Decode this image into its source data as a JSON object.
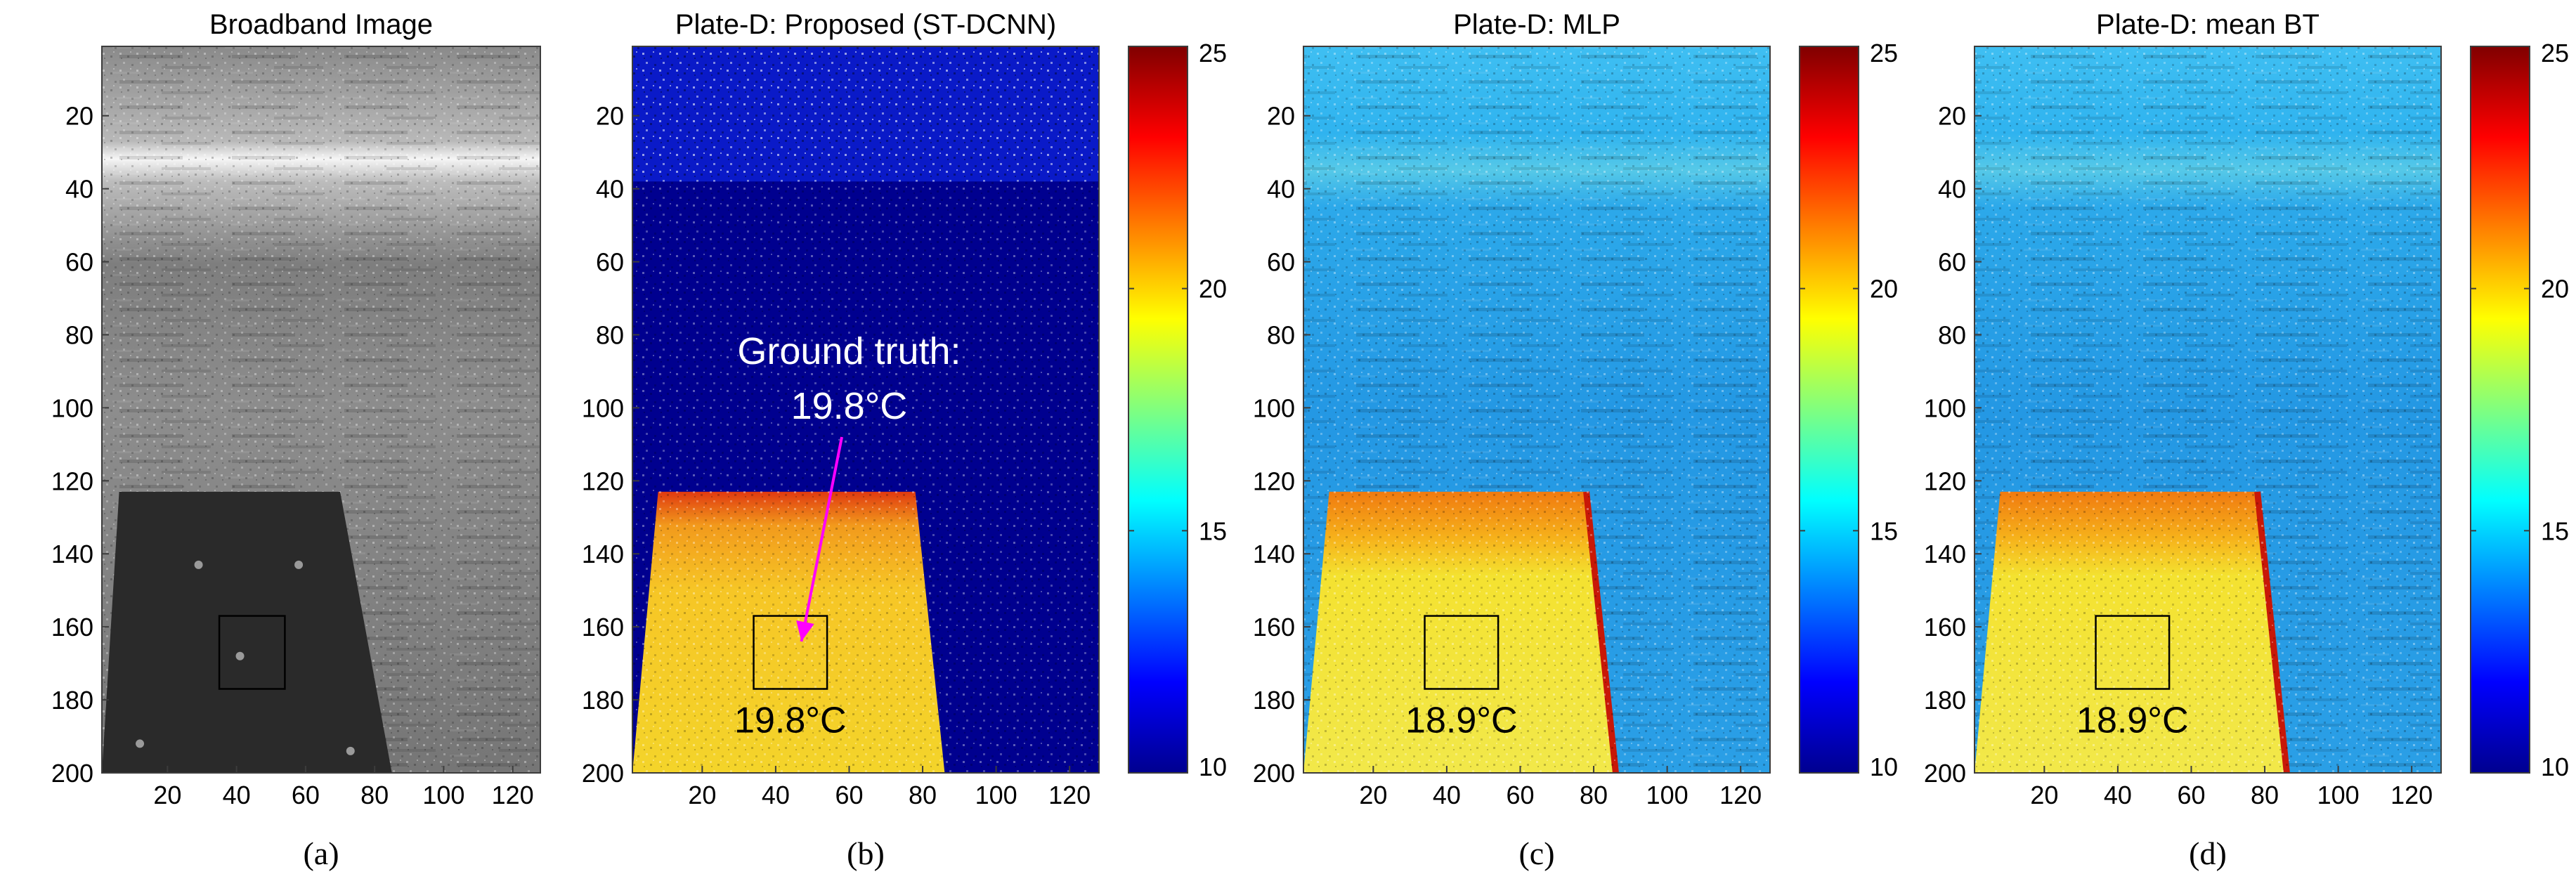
{
  "chart_data": [
    {
      "id": "a",
      "type": "heatmap",
      "title": "Broadband Image",
      "panel_label": "(a)",
      "colormap": "gray",
      "x_ticks": [
        20,
        40,
        60,
        80,
        100,
        120
      ],
      "y_ticks": [
        20,
        40,
        60,
        80,
        100,
        120,
        140,
        160,
        180,
        200
      ],
      "xlim": [
        1,
        128
      ],
      "ylim": [
        1,
        200
      ],
      "plate_polygon": [
        [
          6,
          123
        ],
        [
          70,
          123
        ],
        [
          85,
          200
        ],
        [
          1,
          200
        ]
      ],
      "roi_box": {
        "x1": 35,
        "y1": 157,
        "x2": 54,
        "y2": 177
      }
    },
    {
      "id": "b",
      "type": "heatmap",
      "title": "Plate-D: Proposed (ST-DCNN)",
      "panel_label": "(b)",
      "colormap": "jet",
      "x_ticks": [
        20,
        40,
        60,
        80,
        100,
        120
      ],
      "y_ticks": [
        20,
        40,
        60,
        80,
        100,
        120,
        140,
        160,
        180,
        200
      ],
      "xlim": [
        1,
        128
      ],
      "ylim": [
        1,
        200
      ],
      "clim": [
        10,
        25
      ],
      "colorbar_ticks": [
        10,
        15,
        20,
        25
      ],
      "plate_polygon": [
        [
          8,
          123
        ],
        [
          78,
          123
        ],
        [
          86,
          200
        ],
        [
          1,
          200
        ]
      ],
      "roi_box": {
        "x1": 34,
        "y1": 157,
        "x2": 54,
        "y2": 177
      },
      "roi_temperature": "19.8°C",
      "annotation": {
        "line1": "Ground truth:",
        "line2": "19.8°C"
      }
    },
    {
      "id": "c",
      "type": "heatmap",
      "title": "Plate-D: MLP",
      "panel_label": "(c)",
      "colormap": "jet",
      "x_ticks": [
        20,
        40,
        60,
        80,
        100,
        120
      ],
      "y_ticks": [
        20,
        40,
        60,
        80,
        100,
        120,
        140,
        160,
        180,
        200
      ],
      "xlim": [
        1,
        128
      ],
      "ylim": [
        1,
        200
      ],
      "clim": [
        10,
        25
      ],
      "colorbar_ticks": [
        10,
        15,
        20,
        25
      ],
      "plate_polygon": [
        [
          8,
          123
        ],
        [
          78,
          123
        ],
        [
          86,
          200
        ],
        [
          1,
          200
        ]
      ],
      "roi_box": {
        "x1": 34,
        "y1": 157,
        "x2": 54,
        "y2": 177
      },
      "roi_temperature": "18.9°C"
    },
    {
      "id": "d",
      "type": "heatmap",
      "title": "Plate-D: mean BT",
      "panel_label": "(d)",
      "colormap": "jet",
      "x_ticks": [
        20,
        40,
        60,
        80,
        100,
        120
      ],
      "y_ticks": [
        20,
        40,
        60,
        80,
        100,
        120,
        140,
        160,
        180,
        200
      ],
      "xlim": [
        1,
        128
      ],
      "ylim": [
        1,
        200
      ],
      "clim": [
        10,
        25
      ],
      "colorbar_ticks": [
        10,
        15,
        20,
        25
      ],
      "plate_polygon": [
        [
          8,
          123
        ],
        [
          78,
          123
        ],
        [
          86,
          200
        ],
        [
          1,
          200
        ]
      ],
      "roi_box": {
        "x1": 34,
        "y1": 157,
        "x2": 54,
        "y2": 177
      },
      "roi_temperature": "18.9°C"
    }
  ],
  "colors": {
    "annotation_arrow": "#ff00ff",
    "jet_low": "#00008f",
    "jet_high": "#800000"
  }
}
